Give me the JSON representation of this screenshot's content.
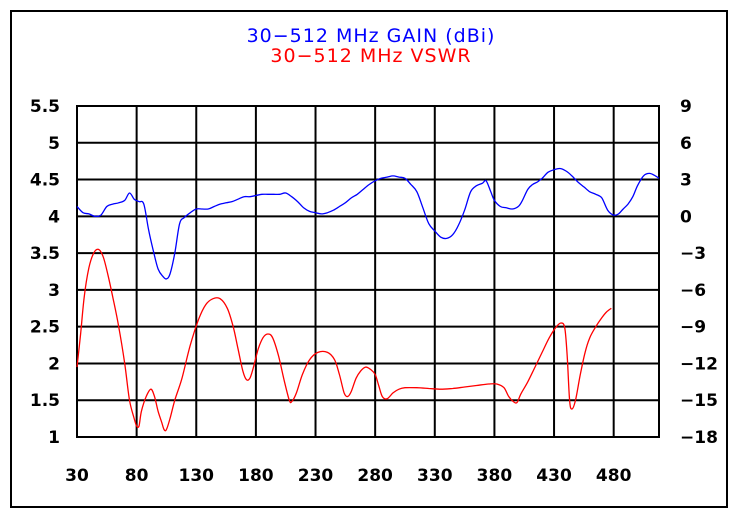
{
  "chart_data": {
    "type": "line",
    "titles": [
      {
        "text": "30−512  MHz  GAIN  (dBi)",
        "color": "#0000ff"
      },
      {
        "text": "30−512  MHz  VSWR",
        "color": "#ff0000"
      }
    ],
    "x": {
      "range": [
        30,
        518
      ],
      "ticks": [
        "30",
        "80",
        "130",
        "180",
        "230",
        "280",
        "330",
        "380",
        "430",
        "480"
      ]
    },
    "y_left": {
      "range": [
        1,
        5.5
      ],
      "ticks": [
        "1",
        "1.5",
        "2",
        "2.5",
        "3",
        "3.5",
        "4",
        "4.5",
        "5",
        "5.5"
      ]
    },
    "y_right": {
      "range": [
        -18,
        9
      ],
      "ticks": [
        "−18",
        "−15",
        "−12",
        "−9",
        "−6",
        "−3",
        "0",
        "3",
        "6",
        "9"
      ]
    },
    "grid": true,
    "series": [
      {
        "color": "#0000ff",
        "axis": "right",
        "points": [
          [
            30,
            0.8
          ],
          [
            35,
            0.3
          ],
          [
            40,
            0.2
          ],
          [
            45,
            0
          ],
          [
            50,
            0.1
          ],
          [
            55,
            0.8
          ],
          [
            60,
            1.0
          ],
          [
            65,
            1.1
          ],
          [
            70,
            1.3
          ],
          [
            74,
            1.9
          ],
          [
            78,
            1.4
          ],
          [
            82,
            1.2
          ],
          [
            86,
            1.0
          ],
          [
            90,
            -1.1
          ],
          [
            94,
            -2.8
          ],
          [
            98,
            -4.3
          ],
          [
            102,
            -4.9
          ],
          [
            105,
            -5.1
          ],
          [
            108,
            -4.7
          ],
          [
            112,
            -3.0
          ],
          [
            116,
            -0.6
          ],
          [
            120,
            -0.1
          ],
          [
            125,
            0.3
          ],
          [
            130,
            0.6
          ],
          [
            135,
            0.6
          ],
          [
            140,
            0.6
          ],
          [
            145,
            0.8
          ],
          [
            150,
            1.0
          ],
          [
            155,
            1.1
          ],
          [
            160,
            1.2
          ],
          [
            165,
            1.4
          ],
          [
            170,
            1.6
          ],
          [
            175,
            1.6
          ],
          [
            180,
            1.7
          ],
          [
            185,
            1.8
          ],
          [
            190,
            1.8
          ],
          [
            195,
            1.8
          ],
          [
            200,
            1.8
          ],
          [
            205,
            1.9
          ],
          [
            210,
            1.6
          ],
          [
            215,
            1.2
          ],
          [
            220,
            0.7
          ],
          [
            225,
            0.4
          ],
          [
            230,
            0.3
          ],
          [
            235,
            0.2
          ],
          [
            240,
            0.3
          ],
          [
            245,
            0.5
          ],
          [
            250,
            0.8
          ],
          [
            255,
            1.1
          ],
          [
            260,
            1.5
          ],
          [
            265,
            1.8
          ],
          [
            270,
            2.2
          ],
          [
            275,
            2.6
          ],
          [
            280,
            2.9
          ],
          [
            285,
            3.1
          ],
          [
            290,
            3.2
          ],
          [
            295,
            3.3
          ],
          [
            300,
            3.2
          ],
          [
            305,
            3.1
          ],
          [
            310,
            2.6
          ],
          [
            315,
            2.0
          ],
          [
            320,
            0.7
          ],
          [
            325,
            -0.6
          ],
          [
            330,
            -1.2
          ],
          [
            335,
            -1.7
          ],
          [
            340,
            -1.8
          ],
          [
            345,
            -1.5
          ],
          [
            350,
            -0.7
          ],
          [
            355,
            0.5
          ],
          [
            360,
            2.0
          ],
          [
            365,
            2.5
          ],
          [
            370,
            2.7
          ],
          [
            373,
            2.9
          ],
          [
            377,
            2.0
          ],
          [
            380,
            1.3
          ],
          [
            385,
            0.8
          ],
          [
            390,
            0.7
          ],
          [
            395,
            0.6
          ],
          [
            400,
            0.8
          ],
          [
            403,
            1.2
          ],
          [
            408,
            2.2
          ],
          [
            412,
            2.6
          ],
          [
            416,
            2.8
          ],
          [
            420,
            3.1
          ],
          [
            425,
            3.6
          ],
          [
            430,
            3.8
          ],
          [
            435,
            3.9
          ],
          [
            440,
            3.7
          ],
          [
            445,
            3.3
          ],
          [
            450,
            2.8
          ],
          [
            455,
            2.4
          ],
          [
            460,
            2.0
          ],
          [
            465,
            1.8
          ],
          [
            470,
            1.5
          ],
          [
            475,
            0.5
          ],
          [
            480,
            0.1
          ],
          [
            484,
            0.2
          ],
          [
            488,
            0.6
          ],
          [
            492,
            1.0
          ],
          [
            496,
            1.6
          ],
          [
            500,
            2.5
          ],
          [
            505,
            3.3
          ],
          [
            510,
            3.5
          ],
          [
            515,
            3.3
          ],
          [
            518,
            3.1
          ]
        ]
      },
      {
        "color": "#ff0000",
        "axis": "left",
        "points": [
          [
            30,
            1.95
          ],
          [
            33,
            2.4
          ],
          [
            36,
            2.9
          ],
          [
            40,
            3.3
          ],
          [
            44,
            3.5
          ],
          [
            48,
            3.55
          ],
          [
            52,
            3.45
          ],
          [
            56,
            3.2
          ],
          [
            60,
            2.9
          ],
          [
            65,
            2.5
          ],
          [
            70,
            2.0
          ],
          [
            74,
            1.5
          ],
          [
            78,
            1.25
          ],
          [
            80,
            1.15
          ],
          [
            82,
            1.15
          ],
          [
            84,
            1.35
          ],
          [
            88,
            1.55
          ],
          [
            92,
            1.65
          ],
          [
            95,
            1.55
          ],
          [
            98,
            1.35
          ],
          [
            101,
            1.2
          ],
          [
            103,
            1.1
          ],
          [
            105,
            1.1
          ],
          [
            108,
            1.25
          ],
          [
            112,
            1.5
          ],
          [
            118,
            1.8
          ],
          [
            125,
            2.25
          ],
          [
            132,
            2.6
          ],
          [
            138,
            2.8
          ],
          [
            144,
            2.88
          ],
          [
            150,
            2.88
          ],
          [
            156,
            2.75
          ],
          [
            161,
            2.5
          ],
          [
            165,
            2.2
          ],
          [
            169,
            1.9
          ],
          [
            172,
            1.78
          ],
          [
            175,
            1.8
          ],
          [
            178,
            1.95
          ],
          [
            182,
            2.2
          ],
          [
            186,
            2.35
          ],
          [
            190,
            2.4
          ],
          [
            194,
            2.35
          ],
          [
            199,
            2.1
          ],
          [
            204,
            1.75
          ],
          [
            208,
            1.5
          ],
          [
            210,
            1.48
          ],
          [
            214,
            1.6
          ],
          [
            219,
            1.85
          ],
          [
            225,
            2.05
          ],
          [
            232,
            2.15
          ],
          [
            240,
            2.15
          ],
          [
            246,
            2.05
          ],
          [
            250,
            1.85
          ],
          [
            254,
            1.6
          ],
          [
            257,
            1.55
          ],
          [
            260,
            1.62
          ],
          [
            264,
            1.8
          ],
          [
            268,
            1.9
          ],
          [
            272,
            1.95
          ],
          [
            276,
            1.92
          ],
          [
            280,
            1.85
          ],
          [
            283,
            1.7
          ],
          [
            286,
            1.55
          ],
          [
            290,
            1.52
          ],
          [
            295,
            1.6
          ],
          [
            300,
            1.65
          ],
          [
            305,
            1.67
          ],
          [
            315,
            1.67
          ],
          [
            325,
            1.66
          ],
          [
            335,
            1.65
          ],
          [
            345,
            1.66
          ],
          [
            355,
            1.68
          ],
          [
            365,
            1.7
          ],
          [
            375,
            1.72
          ],
          [
            382,
            1.72
          ],
          [
            388,
            1.67
          ],
          [
            392,
            1.55
          ],
          [
            396,
            1.48
          ],
          [
            399,
            1.47
          ],
          [
            402,
            1.58
          ],
          [
            408,
            1.75
          ],
          [
            414,
            1.95
          ],
          [
            420,
            2.15
          ],
          [
            426,
            2.35
          ],
          [
            432,
            2.5
          ],
          [
            436,
            2.55
          ],
          [
            439,
            2.48
          ],
          [
            441,
            2.1
          ],
          [
            443,
            1.5
          ],
          [
            445,
            1.38
          ],
          [
            448,
            1.5
          ],
          [
            452,
            1.85
          ],
          [
            456,
            2.15
          ],
          [
            460,
            2.35
          ],
          [
            465,
            2.5
          ],
          [
            470,
            2.62
          ],
          [
            474,
            2.7
          ],
          [
            478,
            2.75
          ]
        ]
      }
    ]
  }
}
